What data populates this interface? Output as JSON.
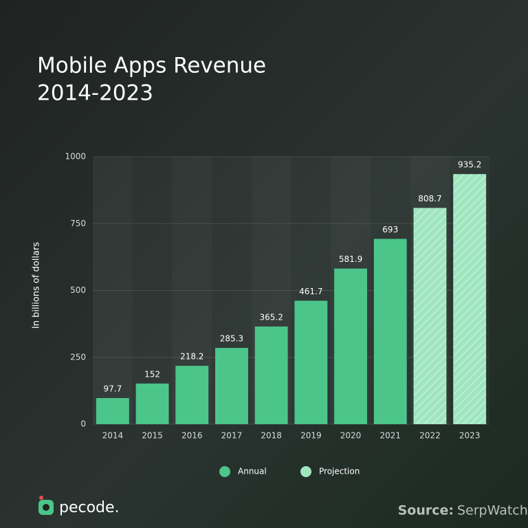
{
  "chart_data": {
    "type": "bar",
    "title": "Mobile Apps Revenue",
    "subtitle": "2014-2023",
    "y_label": "In billions of dollars",
    "categories": [
      "2014",
      "2015",
      "2016",
      "2017",
      "2018",
      "2019",
      "2020",
      "2021",
      "2022",
      "2023"
    ],
    "series": [
      {
        "name": "Annual",
        "color": "#4cc58a",
        "values": [
          97.7,
          152,
          218.2,
          285.3,
          365.2,
          461.7,
          581.9,
          693,
          null,
          null
        ]
      },
      {
        "name": "Projection",
        "color": "#9fe6c0",
        "hatched": true,
        "values": [
          null,
          null,
          null,
          null,
          null,
          null,
          null,
          null,
          808.7,
          935.2
        ]
      }
    ],
    "ylim": [
      0,
      1000
    ],
    "yticks": [
      0,
      250,
      500,
      750,
      1000
    ],
    "grid": true,
    "legend": "bottom",
    "brand": "pecode.",
    "source_prefix": "Source:",
    "source": "SerpWatch"
  }
}
